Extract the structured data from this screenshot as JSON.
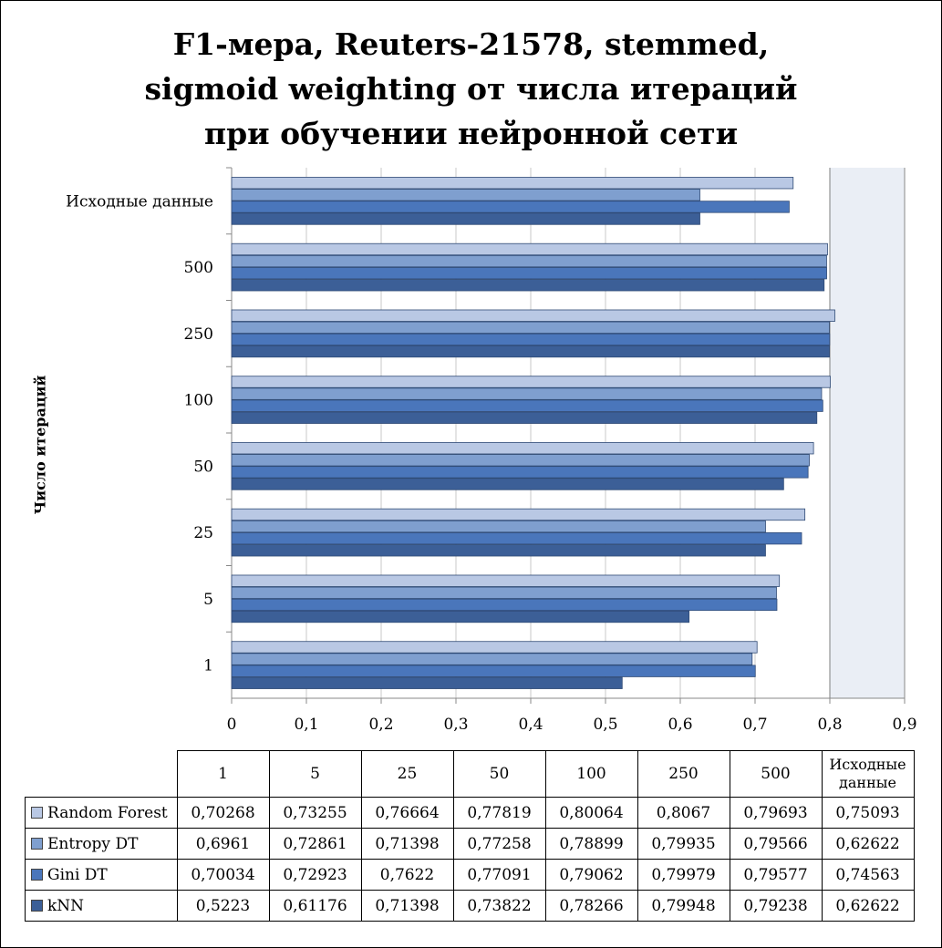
{
  "title_lines": [
    "F1-мера, Reuters-21578, stemmed,",
    "sigmoid weighting от числа итераций",
    "при обучении нейронной сети"
  ],
  "axis_label": "Число итераций",
  "colors": {
    "Random Forest": "#b9c8e4",
    "Entropy DT": "#7f9fcf",
    "Gini DT": "#4a76bb",
    "kNN": "#3c5f97",
    "plot_bg": "#eaeef5"
  },
  "chart_data": {
    "type": "bar",
    "orientation": "horizontal",
    "title": "F1-мера, Reuters-21578, stemmed, sigmoid weighting от числа итераций при обучении нейронной сети",
    "ylabel": "Число итераций",
    "xlabel": "",
    "categories": [
      "1",
      "5",
      "25",
      "50",
      "100",
      "250",
      "500",
      "Исходные данные"
    ],
    "xlim": [
      0,
      0.9
    ],
    "xticks": [
      "0",
      "0,1",
      "0,2",
      "0,3",
      "0,4",
      "0,5",
      "0,6",
      "0,7",
      "0,8",
      "0,9"
    ],
    "grid": "vertical lines at 0,8 and 0,9",
    "legend": "table below chart",
    "series": [
      {
        "name": "Random Forest",
        "values": [
          0.70268,
          0.73255,
          0.76664,
          0.77819,
          0.80064,
          0.8067,
          0.79693,
          0.75093
        ],
        "labels": [
          "0,70268",
          "0,73255",
          "0,76664",
          "0,77819",
          "0,80064",
          "0,8067",
          "0,79693",
          "0,75093"
        ]
      },
      {
        "name": "Entropy DT",
        "values": [
          0.6961,
          0.72861,
          0.71398,
          0.77258,
          0.78899,
          0.79935,
          0.79566,
          0.62622
        ],
        "labels": [
          "0,6961",
          "0,72861",
          "0,71398",
          "0,77258",
          "0,78899",
          "0,79935",
          "0,79566",
          "0,62622"
        ]
      },
      {
        "name": "Gini DT",
        "values": [
          0.70034,
          0.72923,
          0.7622,
          0.77091,
          0.79062,
          0.79979,
          0.79577,
          0.74563
        ],
        "labels": [
          "0,70034",
          "0,72923",
          "0,7622",
          "0,77091",
          "0,79062",
          "0,79979",
          "0,79577",
          "0,74563"
        ]
      },
      {
        "name": "kNN",
        "values": [
          0.5223,
          0.61176,
          0.71398,
          0.73822,
          0.78266,
          0.79948,
          0.79238,
          0.62622
        ],
        "labels": [
          "0,5223",
          "0,61176",
          "0,71398",
          "0,73822",
          "0,78266",
          "0,79948",
          "0,79238",
          "0,62622"
        ]
      }
    ]
  },
  "table": {
    "headers": [
      "1",
      "5",
      "25",
      "50",
      "100",
      "250",
      "500"
    ],
    "last_header": [
      "Исходные",
      "данные"
    ]
  }
}
